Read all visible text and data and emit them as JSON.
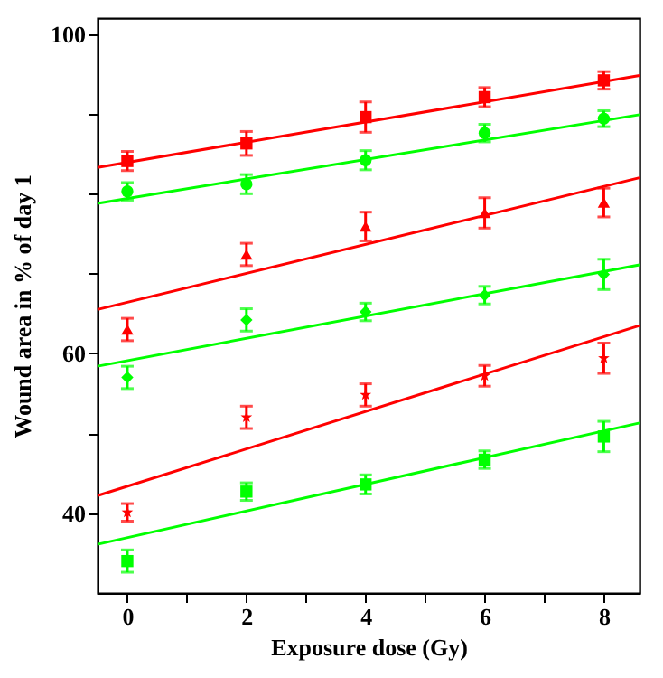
{
  "chart_data": {
    "type": "scatter",
    "xlabel": "Exposure dose (Gy)",
    "ylabel": "Wound area in % of day 1",
    "xlim": [
      -0.5,
      8.6
    ],
    "ylim": [
      30,
      102
    ],
    "xticks": [
      0,
      {
        "value": 1,
        "label": null
      },
      2,
      {
        "value": 3,
        "label": null
      },
      4,
      {
        "value": 5,
        "label": null
      },
      6,
      {
        "value": 7,
        "label": null
      },
      8
    ],
    "yticks": [
      40,
      {
        "value": 50,
        "label": null
      },
      60,
      {
        "value": 70,
        "label": null
      },
      {
        "value": 80,
        "label": null
      },
      {
        "value": 90,
        "label": null
      },
      100
    ],
    "grid": false,
    "series": [
      {
        "marker": "square",
        "color": "#ff0000",
        "x": [
          0,
          2,
          4,
          6,
          8
        ],
        "values": [
          84.1,
          86.3,
          89.6,
          92.1,
          94.2
        ],
        "errors": [
          1.2,
          1.5,
          1.9,
          1.2,
          1.1
        ]
      },
      {
        "type": "line",
        "marker": "none",
        "color": "#ff0000",
        "x": [
          -0.5,
          8.6
        ],
        "values": [
          83.3,
          94.8
        ]
      },
      {
        "marker": "circle",
        "color": "#00ff00",
        "x": [
          0,
          2,
          4,
          6,
          8
        ],
        "values": [
          80.3,
          81.2,
          84.2,
          87.6,
          89.4
        ],
        "errors": [
          1.1,
          1.2,
          1.2,
          1.1,
          1.0
        ]
      },
      {
        "type": "line",
        "marker": "none",
        "color": "#00ff00",
        "x": [
          -0.5,
          8.6
        ],
        "values": [
          78.8,
          89.9
        ]
      },
      {
        "marker": "triangle",
        "color": "#ff0000",
        "x": [
          0,
          2,
          4,
          6,
          8
        ],
        "values": [
          63.0,
          72.4,
          75.9,
          77.6,
          78.9
        ],
        "errors": [
          1.4,
          1.4,
          1.8,
          1.9,
          1.8
        ]
      },
      {
        "type": "line",
        "marker": "none",
        "color": "#ff0000",
        "x": [
          -0.5,
          8.6
        ],
        "values": [
          65.5,
          82.0
        ]
      },
      {
        "marker": "diamond",
        "color": "#00ff00",
        "x": [
          0,
          2,
          4,
          6,
          8
        ],
        "values": [
          57.0,
          64.2,
          65.2,
          67.3,
          69.9
        ],
        "errors": [
          1.4,
          1.4,
          1.1,
          1.1,
          1.9
        ]
      },
      {
        "type": "line",
        "marker": "none",
        "color": "#00ff00",
        "x": [
          -0.5,
          8.6
        ],
        "values": [
          58.4,
          71.1
        ]
      },
      {
        "marker": "star",
        "color": "#ff0000",
        "x": [
          0,
          2,
          4,
          6,
          8
        ],
        "values": [
          40.1,
          52.0,
          54.8,
          57.2,
          59.4
        ],
        "errors": [
          1.1,
          1.4,
          1.4,
          1.3,
          1.9
        ]
      },
      {
        "type": "line",
        "marker": "none",
        "color": "#ff0000",
        "x": [
          -0.5,
          8.6
        ],
        "values": [
          42.2,
          63.5
        ]
      },
      {
        "marker": "square",
        "color": "#00ff00",
        "x": [
          0,
          2,
          4,
          6,
          8
        ],
        "values": [
          34.0,
          42.7,
          43.6,
          46.7,
          49.6
        ],
        "errors": [
          1.4,
          1.1,
          1.2,
          1.1,
          1.9
        ]
      },
      {
        "type": "line",
        "marker": "none",
        "color": "#00ff00",
        "x": [
          -0.5,
          8.6
        ],
        "values": [
          36.1,
          51.3
        ]
      }
    ]
  }
}
